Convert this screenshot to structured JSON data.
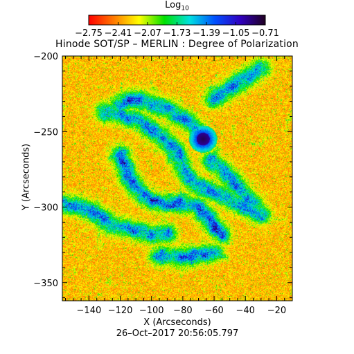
{
  "chart_data": {
    "type": "heatmap",
    "title": "Hinode SOT/SP – MERLIN : Degree of Polarization",
    "colorbar": {
      "label_main": "Log",
      "label_sub": "10",
      "ticks": [
        -2.75,
        -2.41,
        -2.07,
        -1.73,
        -1.39,
        -1.05,
        -0.71
      ],
      "tick_labels": [
        "−2.75",
        "−2.41",
        "−2.07",
        "−1.73",
        "−1.39",
        "−1.05",
        "−0.71"
      ],
      "range": [
        -2.75,
        -0.71
      ],
      "colormap": [
        "#ff0000",
        "#ff7a00",
        "#ffff00",
        "#00e000",
        "#00e0e0",
        "#0050ff",
        "#3000c0",
        "#200020"
      ]
    },
    "xlabel": "X (Arcseconds)",
    "ylabel": "Y (Arcseconds)",
    "xlim": [
      -157,
      -10
    ],
    "ylim": [
      -362,
      -200
    ],
    "xticks": [
      -140,
      -120,
      -100,
      -80,
      -60,
      -40,
      -20
    ],
    "xtick_labels": [
      "−140",
      "−120",
      "−100",
      "−80",
      "−60",
      "−40",
      "−20"
    ],
    "yticks": [
      -200,
      -250,
      -300,
      -350
    ],
    "ytick_labels": [
      "−200",
      "−250",
      "−300",
      "−350"
    ],
    "annotation": "26–Oct–2017 20:56:05.797",
    "features": [
      {
        "kind": "sunspot",
        "x": -67,
        "y": -255,
        "peak": -0.8
      }
    ]
  }
}
